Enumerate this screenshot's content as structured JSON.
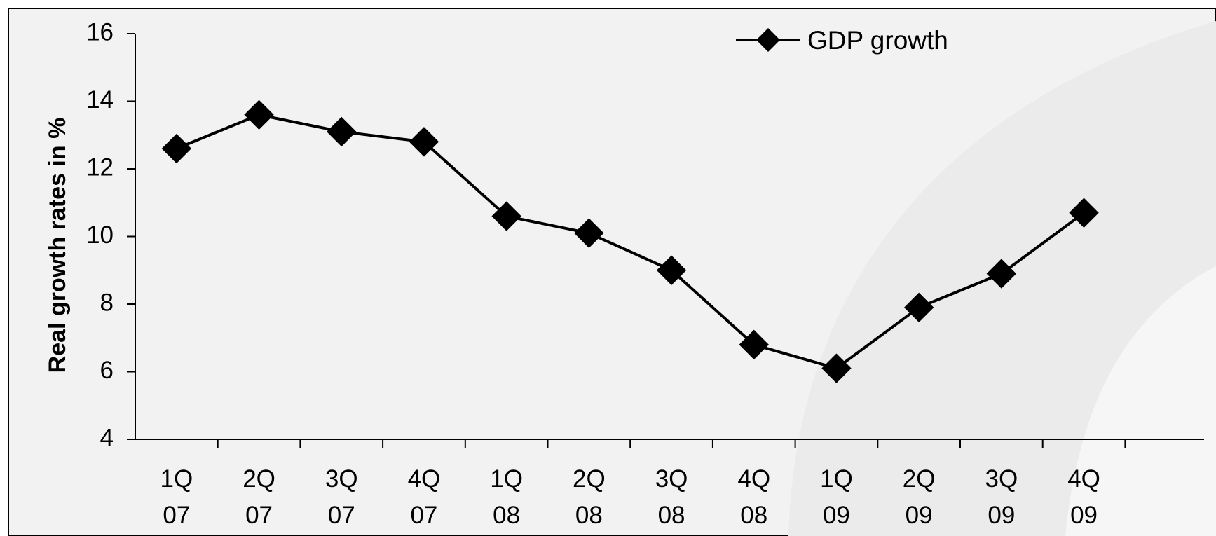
{
  "chart_data": {
    "type": "line",
    "title": "",
    "xlabel": "",
    "ylabel": "Real growth rates in %",
    "ylim": [
      4,
      16
    ],
    "yticks": [
      "4",
      "6",
      "8",
      "10",
      "12",
      "14",
      "16"
    ],
    "categories": [
      [
        "1Q",
        "07"
      ],
      [
        "2Q",
        "07"
      ],
      [
        "3Q",
        "07"
      ],
      [
        "4Q",
        "07"
      ],
      [
        "1Q",
        "08"
      ],
      [
        "2Q",
        "08"
      ],
      [
        "3Q",
        "08"
      ],
      [
        "4Q",
        "08"
      ],
      [
        "1Q",
        "09"
      ],
      [
        "2Q",
        "09"
      ],
      [
        "3Q",
        "09"
      ],
      [
        "4Q",
        "09"
      ]
    ],
    "series": [
      {
        "name": "GDP growth",
        "values": [
          12.6,
          13.6,
          13.1,
          12.8,
          10.6,
          10.1,
          9.0,
          6.8,
          6.1,
          7.9,
          8.9,
          10.7
        ]
      }
    ],
    "legend_position": "top-right",
    "grid": false,
    "colors": {
      "line": "#000000",
      "background": "#f2f2f2",
      "swoosh": "#e9e9e9"
    }
  }
}
